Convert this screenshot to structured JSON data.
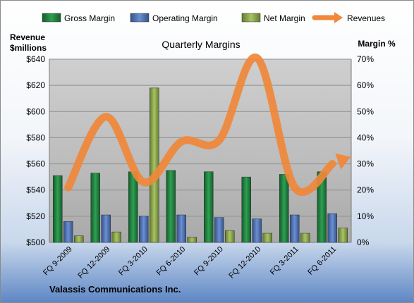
{
  "chart_data": {
    "type": "bar",
    "title": "Quarterly Margins",
    "left_axis_title_line1": "Revenue",
    "left_axis_title_line2": "$millions",
    "right_axis_title": "Margin %",
    "footer": "Valassis Communications Inc.",
    "categories": [
      "FQ 9-2009",
      "FQ 12-2009",
      "FQ 3-2010",
      "FQ 6-2010",
      "FQ 9-2010",
      "FQ 12-2010",
      "FQ 3-2011",
      "FQ 6-2011"
    ],
    "left_axis": {
      "min": 500,
      "max": 640,
      "step": 20,
      "prefix": "$",
      "ticks": [
        "$500",
        "$520",
        "$540",
        "$560",
        "$580",
        "$600",
        "$620",
        "$640"
      ]
    },
    "right_axis": {
      "min": 0,
      "max": 70,
      "step": 10,
      "suffix": "%",
      "ticks": [
        "0%",
        "10%",
        "20%",
        "30%",
        "40%",
        "50%",
        "60%",
        "70%"
      ]
    },
    "series": [
      {
        "name": "Gross Margin",
        "kind": "bar",
        "axis": "right",
        "color": "#1e7f3e",
        "values": [
          25.5,
          26.5,
          27,
          27.5,
          27,
          25,
          26,
          27
        ]
      },
      {
        "name": "Operating Margin",
        "kind": "bar",
        "axis": "right",
        "color": "#4a6fb0",
        "values": [
          8,
          10.5,
          10,
          10.5,
          9.5,
          9,
          10.5,
          11
        ]
      },
      {
        "name": "Net Margin",
        "kind": "bar",
        "axis": "right",
        "color": "#8aa64a",
        "values": [
          2.5,
          4,
          59,
          2,
          4.5,
          3.5,
          3.5,
          5.5
        ]
      },
      {
        "name": "Revenues",
        "kind": "line",
        "axis": "left",
        "color": "#f0883a",
        "values": [
          542,
          596,
          546,
          577,
          578,
          641,
          542,
          560
        ]
      }
    ],
    "grid": true,
    "legend_position": "top"
  }
}
